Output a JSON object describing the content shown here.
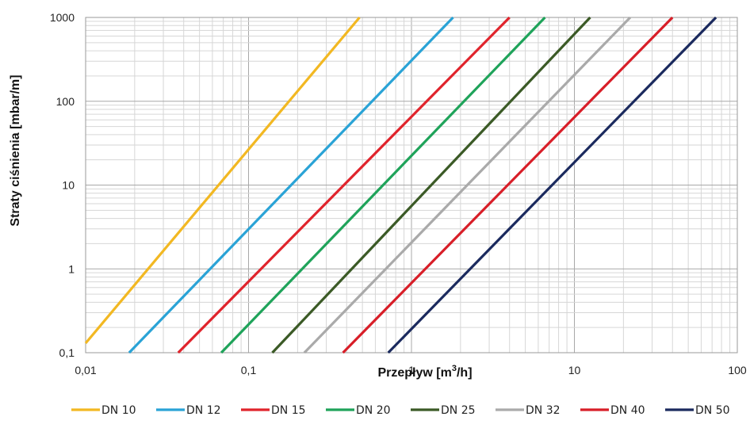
{
  "chart_data": {
    "type": "line",
    "xlabel_main": "Przepływ [m",
    "xlabel_sup": "3",
    "xlabel_tail": "/h]",
    "ylabel": "Straty ciśnienia [mbar/m]",
    "x_scale": "log",
    "y_scale": "log",
    "xlim": [
      0.01,
      100
    ],
    "ylim": [
      0.1,
      1000
    ],
    "x_ticks": [
      "0,01",
      "0,1",
      "1",
      "10",
      "100"
    ],
    "y_ticks": [
      "0,1",
      "1",
      "10",
      "100",
      "1000"
    ],
    "grid": true,
    "legend_position": "bottom",
    "series": [
      {
        "name": "DN 10",
        "color": "#f2b822",
        "x": [
          0.01,
          0.48
        ],
        "y": [
          0.13,
          1000
        ]
      },
      {
        "name": "DN 12",
        "color": "#2aa3d6",
        "x": [
          0.0185,
          1.8
        ],
        "y": [
          0.1,
          1000
        ]
      },
      {
        "name": "DN 15",
        "color": "#e0242c",
        "x": [
          0.037,
          4.0
        ],
        "y": [
          0.1,
          1000
        ]
      },
      {
        "name": "DN 20",
        "color": "#1fa35a",
        "x": [
          0.068,
          6.6
        ],
        "y": [
          0.1,
          1000
        ]
      },
      {
        "name": "DN 25",
        "color": "#3b5a26",
        "x": [
          0.14,
          12.5
        ],
        "y": [
          0.1,
          1000
        ]
      },
      {
        "name": "DN 32",
        "color": "#aaaaaa",
        "x": [
          0.22,
          22.0
        ],
        "y": [
          0.1,
          1000
        ]
      },
      {
        "name": "DN 40",
        "color": "#d81e28",
        "x": [
          0.38,
          40.0
        ],
        "y": [
          0.1,
          1000
        ]
      },
      {
        "name": "DN 50",
        "color": "#1b2a5e",
        "x": [
          0.72,
          74.0
        ],
        "y": [
          0.1,
          1000
        ]
      }
    ]
  }
}
